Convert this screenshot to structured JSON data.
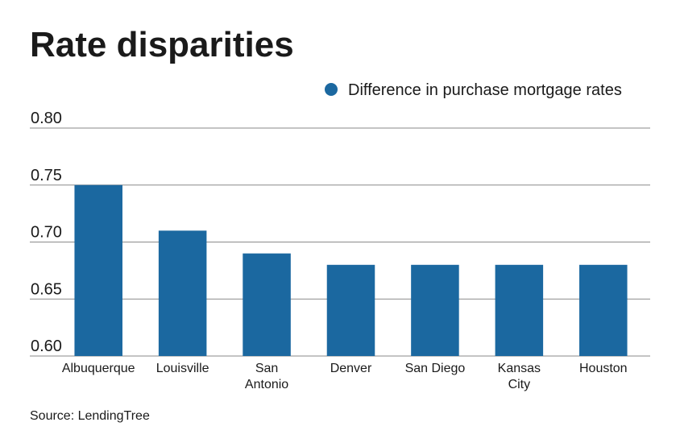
{
  "chart_data": {
    "type": "bar",
    "title": "Rate disparities",
    "categories": [
      "Albuquerque",
      "Louisville",
      "San Antonio",
      "Denver",
      "San Diego",
      "Kansas City",
      "Houston"
    ],
    "series": [
      {
        "name": "Difference in purchase mortgage rates",
        "color": "#1b68a0",
        "values": [
          0.75,
          0.71,
          0.69,
          0.68,
          0.68,
          0.68,
          0.68
        ]
      }
    ],
    "ylim": [
      0.6,
      0.8
    ],
    "yticks": [
      {
        "value": 0.6,
        "label": "0.60"
      },
      {
        "value": 0.65,
        "label": "0.65"
      },
      {
        "value": 0.7,
        "label": "0.70"
      },
      {
        "value": 0.75,
        "label": "0.75"
      },
      {
        "value": 0.8,
        "label": "0.80"
      }
    ],
    "grid": true,
    "legend": "top-right",
    "source": "Source: LendingTree"
  }
}
